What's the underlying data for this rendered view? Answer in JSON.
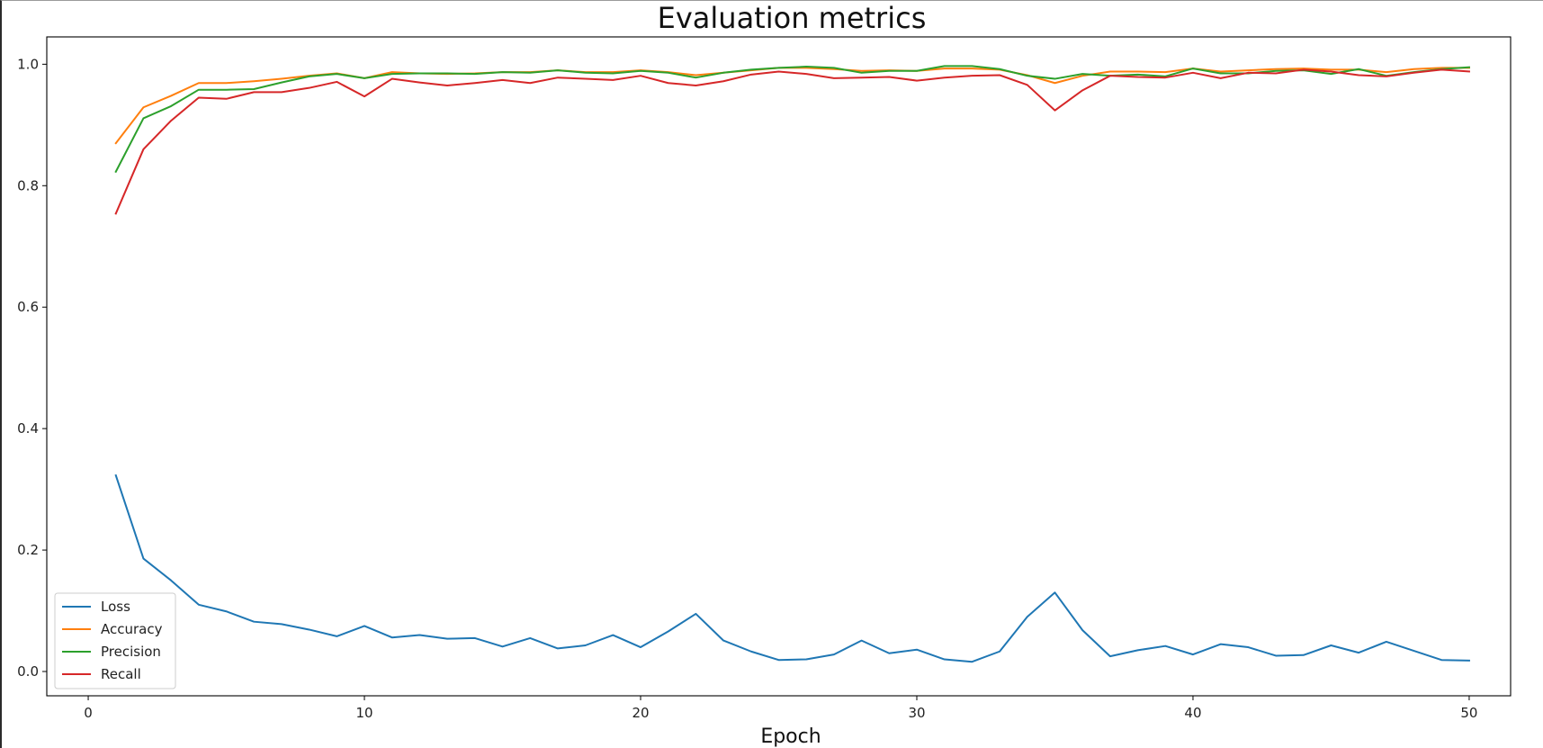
{
  "chart_data": {
    "type": "line",
    "title": "Evaluation metrics",
    "xlabel": "Epoch",
    "ylabel": "",
    "xlim": [
      -1.5,
      51.5
    ],
    "ylim": [
      -0.04,
      1.045
    ],
    "xticks": [
      0,
      10,
      20,
      30,
      40,
      50
    ],
    "yticks": [
      0.0,
      0.2,
      0.4,
      0.6,
      0.8,
      1.0
    ],
    "xtick_labels": [
      "0",
      "10",
      "20",
      "30",
      "40",
      "50"
    ],
    "ytick_labels": [
      "0.0",
      "0.2",
      "0.4",
      "0.6",
      "0.8",
      "1.0"
    ],
    "grid": false,
    "legend_position": "lower-left",
    "x": [
      1,
      2,
      3,
      4,
      5,
      6,
      7,
      8,
      9,
      10,
      11,
      12,
      13,
      14,
      15,
      16,
      17,
      18,
      19,
      20,
      21,
      22,
      23,
      24,
      25,
      26,
      27,
      28,
      29,
      30,
      31,
      32,
      33,
      34,
      35,
      36,
      37,
      38,
      39,
      40,
      41,
      42,
      43,
      44,
      45,
      46,
      47,
      48,
      49,
      50
    ],
    "series": [
      {
        "name": "Loss",
        "color": "#1f77b4",
        "values": [
          0.323,
          0.186,
          0.15,
          0.11,
          0.099,
          0.082,
          0.078,
          0.069,
          0.058,
          0.075,
          0.056,
          0.06,
          0.054,
          0.055,
          0.041,
          0.055,
          0.038,
          0.043,
          0.06,
          0.04,
          0.066,
          0.095,
          0.051,
          0.033,
          0.019,
          0.02,
          0.028,
          0.051,
          0.03,
          0.036,
          0.02,
          0.016,
          0.033,
          0.09,
          0.13,
          0.068,
          0.025,
          0.035,
          0.042,
          0.028,
          0.045,
          0.04,
          0.026,
          0.027,
          0.043,
          0.031,
          0.049,
          0.034,
          0.019,
          0.018
        ]
      },
      {
        "name": "Accuracy",
        "color": "#ff7f0e",
        "values": [
          0.87,
          0.929,
          0.948,
          0.969,
          0.969,
          0.972,
          0.976,
          0.981,
          0.985,
          0.977,
          0.987,
          0.985,
          0.984,
          0.985,
          0.987,
          0.987,
          0.99,
          0.987,
          0.987,
          0.99,
          0.987,
          0.982,
          0.986,
          0.99,
          0.994,
          0.994,
          0.992,
          0.989,
          0.99,
          0.989,
          0.993,
          0.993,
          0.991,
          0.982,
          0.969,
          0.981,
          0.988,
          0.988,
          0.987,
          0.993,
          0.988,
          0.99,
          0.992,
          0.993,
          0.991,
          0.991,
          0.987,
          0.992,
          0.994,
          0.994
        ]
      },
      {
        "name": "Precision",
        "color": "#2ca02c",
        "values": [
          0.823,
          0.911,
          0.931,
          0.958,
          0.958,
          0.959,
          0.97,
          0.98,
          0.984,
          0.977,
          0.984,
          0.985,
          0.985,
          0.984,
          0.987,
          0.986,
          0.99,
          0.986,
          0.985,
          0.989,
          0.986,
          0.978,
          0.986,
          0.991,
          0.994,
          0.996,
          0.994,
          0.986,
          0.989,
          0.989,
          0.997,
          0.997,
          0.992,
          0.981,
          0.976,
          0.984,
          0.981,
          0.983,
          0.98,
          0.993,
          0.985,
          0.985,
          0.989,
          0.99,
          0.984,
          0.992,
          0.981,
          0.987,
          0.992,
          0.995
        ]
      },
      {
        "name": "Recall",
        "color": "#d62728",
        "values": [
          0.754,
          0.86,
          0.907,
          0.945,
          0.943,
          0.954,
          0.954,
          0.961,
          0.971,
          0.947,
          0.976,
          0.97,
          0.965,
          0.969,
          0.974,
          0.969,
          0.978,
          0.976,
          0.974,
          0.981,
          0.969,
          0.965,
          0.972,
          0.983,
          0.988,
          0.984,
          0.977,
          0.978,
          0.979,
          0.973,
          0.978,
          0.981,
          0.982,
          0.966,
          0.924,
          0.957,
          0.981,
          0.979,
          0.978,
          0.986,
          0.977,
          0.986,
          0.985,
          0.991,
          0.988,
          0.982,
          0.98,
          0.986,
          0.991,
          0.988
        ]
      }
    ]
  }
}
